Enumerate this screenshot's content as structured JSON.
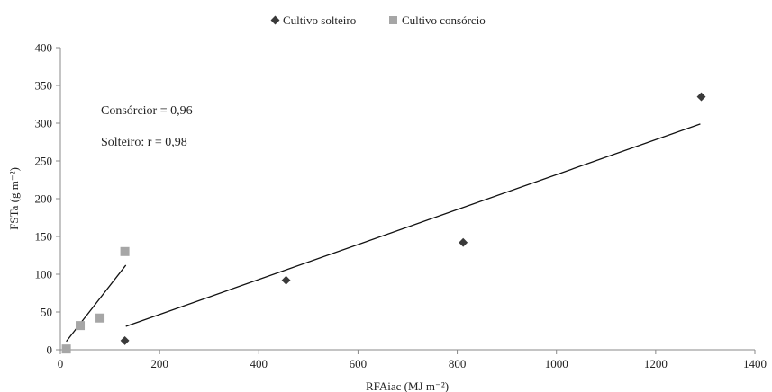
{
  "chart_data": {
    "type": "scatter",
    "title": "",
    "xlabel": "RFAiac (MJ m⁻²)",
    "ylabel": "FSTa (g m⁻²)",
    "xlim": [
      0,
      1400
    ],
    "ylim": [
      0,
      400
    ],
    "xticks": [
      0,
      200,
      400,
      600,
      800,
      1000,
      1200,
      1400
    ],
    "yticks": [
      0,
      50,
      100,
      150,
      200,
      250,
      300,
      350,
      400
    ],
    "grid": false,
    "legend_position": "top-center",
    "series": [
      {
        "name": "Cultivo solteiro",
        "marker": "diamond",
        "color": "#3a3a3a",
        "points": [
          {
            "x": 130,
            "y": 12
          },
          {
            "x": 455,
            "y": 92
          },
          {
            "x": 812,
            "y": 142
          },
          {
            "x": 1292,
            "y": 335
          }
        ],
        "trendline": [
          {
            "x": 132,
            "y": 31
          },
          {
            "x": 1290,
            "y": 299
          }
        ]
      },
      {
        "name": "Cultivo consórcio",
        "marker": "square",
        "color": "#a6a6a6",
        "points": [
          {
            "x": 12,
            "y": 1
          },
          {
            "x": 40,
            "y": 32
          },
          {
            "x": 80,
            "y": 42
          },
          {
            "x": 130,
            "y": 130
          }
        ],
        "trendline": [
          {
            "x": 12,
            "y": 11
          },
          {
            "x": 132,
            "y": 112
          }
        ]
      }
    ],
    "annotations": [
      "Consórcior = 0,96",
      "Solteiro: r = 0,98"
    ]
  }
}
